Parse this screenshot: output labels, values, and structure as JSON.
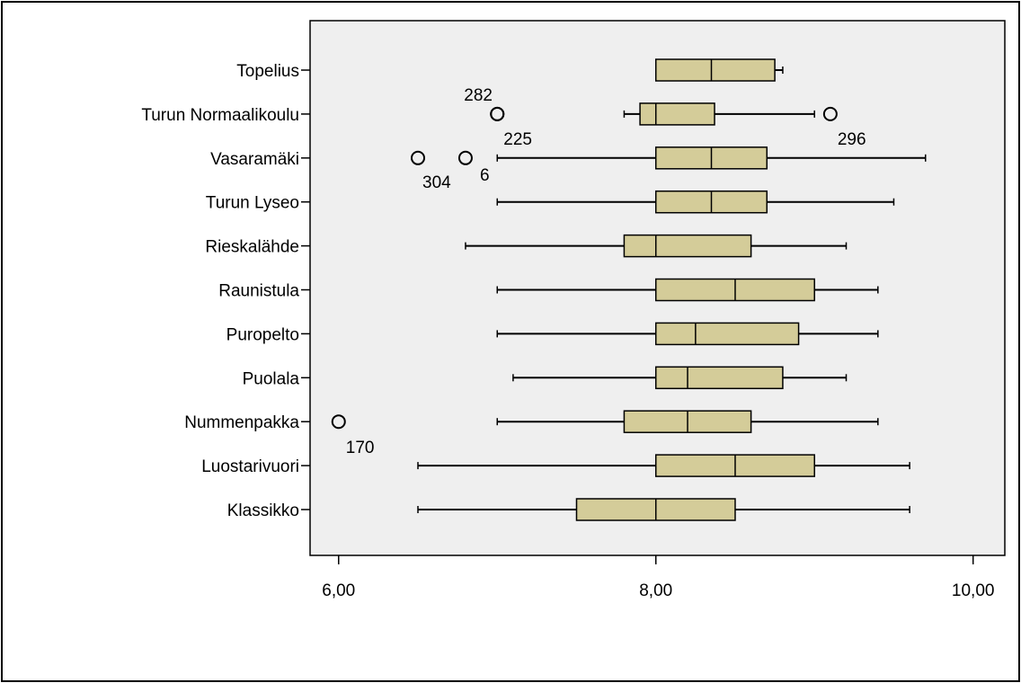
{
  "chart_data": {
    "type": "boxplot",
    "orientation": "horizontal",
    "categories": [
      "Topelius",
      "Turun Normaalikoulu",
      "Vasaramäki",
      "Turun Lyseo",
      "Rieskalähde",
      "Raunistula",
      "Puropelto",
      "Puolala",
      "Nummenpakka",
      "Luostarivuori",
      "Klassikko"
    ],
    "boxes": [
      {
        "category": "Topelius",
        "whisker_low": 8.0,
        "q1": 8.0,
        "median": 8.35,
        "q3": 8.75,
        "whisker_high": 8.8,
        "outliers": []
      },
      {
        "category": "Turun Normaalikoulu",
        "whisker_low": 7.8,
        "q1": 7.9,
        "median": 8.0,
        "q3": 8.37,
        "whisker_high": 9.0,
        "outliers": [
          {
            "value": 7.0,
            "label": "282"
          },
          {
            "value": 7.0,
            "label": "225"
          },
          {
            "value": 9.1,
            "label": "296"
          }
        ]
      },
      {
        "category": "Vasaramäki",
        "whisker_low": 7.0,
        "q1": 8.0,
        "median": 8.35,
        "q3": 8.7,
        "whisker_high": 9.7,
        "outliers": [
          {
            "value": 6.5,
            "label": "304"
          },
          {
            "value": 6.8,
            "label": "6"
          }
        ]
      },
      {
        "category": "Turun Lyseo",
        "whisker_low": 7.0,
        "q1": 8.0,
        "median": 8.35,
        "q3": 8.7,
        "whisker_high": 9.5,
        "outliers": []
      },
      {
        "category": "Rieskalähde",
        "whisker_low": 6.8,
        "q1": 7.8,
        "median": 8.0,
        "q3": 8.6,
        "whisker_high": 9.2,
        "outliers": []
      },
      {
        "category": "Raunistula",
        "whisker_low": 7.0,
        "q1": 8.0,
        "median": 8.5,
        "q3": 9.0,
        "whisker_high": 9.4,
        "outliers": []
      },
      {
        "category": "Puropelto",
        "whisker_low": 7.0,
        "q1": 8.0,
        "median": 8.25,
        "q3": 8.9,
        "whisker_high": 9.4,
        "outliers": []
      },
      {
        "category": "Puolala",
        "whisker_low": 7.1,
        "q1": 8.0,
        "median": 8.2,
        "q3": 8.8,
        "whisker_high": 9.2,
        "outliers": []
      },
      {
        "category": "Nummenpakka",
        "whisker_low": 7.0,
        "q1": 7.8,
        "median": 8.2,
        "q3": 8.6,
        "whisker_high": 9.4,
        "outliers": [
          {
            "value": 6.0,
            "label": "170"
          }
        ]
      },
      {
        "category": "Luostarivuori",
        "whisker_low": 6.5,
        "q1": 8.0,
        "median": 8.5,
        "q3": 9.0,
        "whisker_high": 9.6,
        "outliers": []
      },
      {
        "category": "Klassikko",
        "whisker_low": 6.5,
        "q1": 7.5,
        "median": 8.0,
        "q3": 8.5,
        "whisker_high": 9.6,
        "outliers": []
      }
    ],
    "x_ticks": [
      6,
      8,
      10
    ],
    "x_tick_labels": [
      "6,00",
      "8,00",
      "10,00"
    ],
    "xlim": [
      5.82,
      10.2
    ],
    "grid": false,
    "legend": "none",
    "colors": {
      "box_fill": "#d4cc99",
      "plot_background": "#efefef",
      "line": "#000000"
    }
  }
}
